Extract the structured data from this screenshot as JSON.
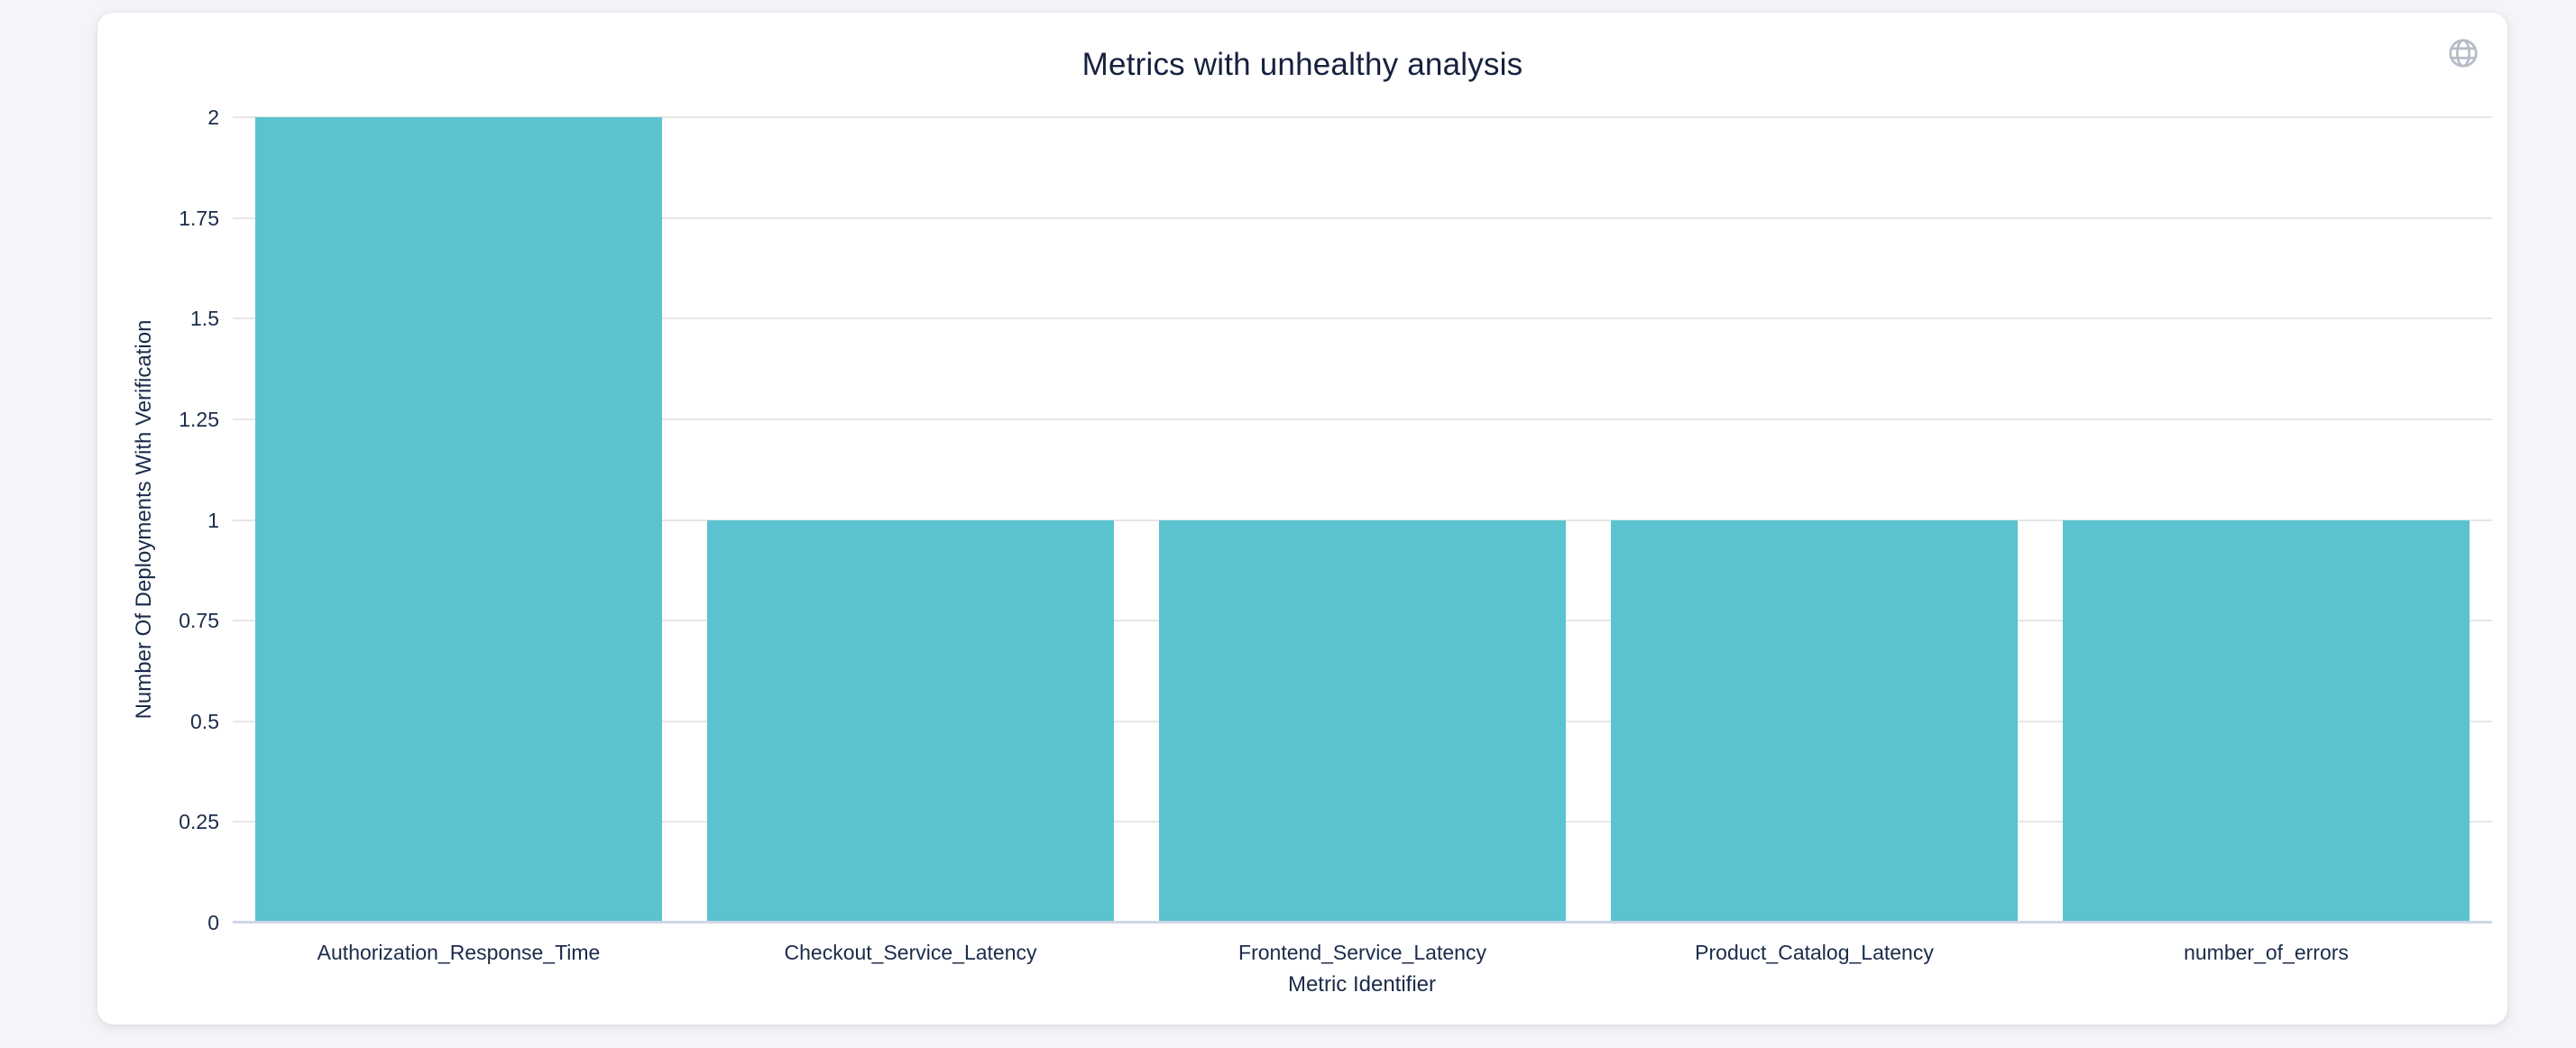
{
  "page": {
    "background_color": "#f4f5f8",
    "card_background_color": "#ffffff"
  },
  "header": {
    "globe_icon": "globe-icon",
    "globe_icon_color": "#b6bcc8"
  },
  "chart_data": {
    "type": "bar",
    "title": "Metrics with unhealthy analysis",
    "categories": [
      "Authorization_Response_Time",
      "Checkout_Service_Latency",
      "Frontend_Service_Latency",
      "Product_Catalog_Latency",
      "number_of_errors"
    ],
    "values": [
      2,
      1,
      1,
      1,
      1
    ],
    "xlabel": "Metric Identifier",
    "ylabel": "Number Of Deployments With Verification",
    "ylim": [
      0,
      2
    ],
    "ytick_labels": [
      "0",
      "0.25",
      "0.5",
      "0.75",
      "1",
      "1.25",
      "1.5",
      "1.75",
      "2"
    ],
    "yticks": [
      0,
      0.25,
      0.5,
      0.75,
      1,
      1.25,
      1.5,
      1.75,
      2
    ],
    "grid": true,
    "legend_position": "none",
    "bar_color": "#5ac3cf",
    "gridline_color": "#e6e6e6",
    "axis_line_color": "#cfd6e6",
    "label_color": "#1b2b4a",
    "title_color": "#16213e"
  }
}
